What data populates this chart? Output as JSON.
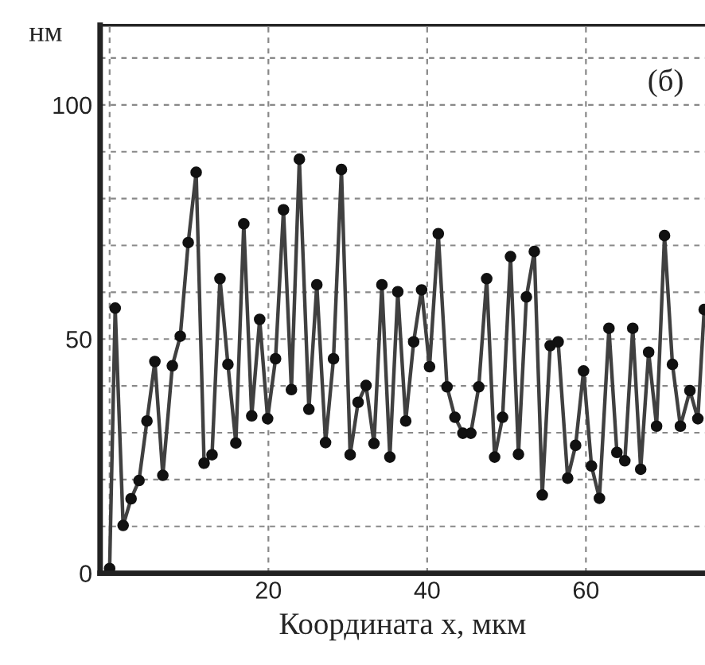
{
  "chart_data": {
    "type": "line",
    "xlabel": "Координата x, мкм",
    "ylabel": "нм",
    "annotations": [
      "(б)"
    ],
    "x": [
      0,
      0.7,
      1.7,
      2.7,
      3.7,
      4.7,
      5.7,
      6.7,
      7.9,
      8.9,
      9.9,
      10.9,
      11.9,
      12.9,
      13.9,
      14.9,
      15.9,
      16.9,
      17.9,
      18.9,
      19.9,
      20.9,
      21.9,
      22.9,
      23.9,
      25.1,
      26.1,
      27.2,
      28.2,
      29.2,
      30.3,
      31.3,
      32.3,
      33.3,
      34.3,
      35.3,
      36.3,
      37.3,
      38.3,
      39.3,
      40.3,
      41.4,
      42.5,
      43.5,
      44.5,
      45.5,
      46.5,
      47.5,
      48.5,
      49.5,
      50.5,
      51.5,
      52.5,
      53.5,
      54.5,
      55.5,
      56.5,
      57.7,
      58.7,
      59.7,
      60.7,
      61.7,
      62.9,
      63.9,
      64.9,
      65.9,
      66.9,
      67.9,
      68.9,
      69.9,
      70.9,
      71.9,
      73.1,
      74.1,
      74.9
    ],
    "series": [
      {
        "color": "#404040",
        "values": [
          1,
          56.6,
          10.2,
          15.9,
          19.8,
          32.5,
          45.2,
          20.9,
          44.3,
          50.6,
          70.6,
          85.6,
          23.5,
          25.3,
          62.9,
          44.6,
          27.8,
          74.6,
          33.6,
          54.2,
          33,
          45.8,
          77.6,
          39.2,
          88.4,
          35,
          61.6,
          27.9,
          45.8,
          86.2,
          25.3,
          36.5,
          40.1,
          27.7,
          61.6,
          24.8,
          60.1,
          32.5,
          49.4,
          60.5,
          44.1,
          72.5,
          39.8,
          33.3,
          29.9,
          29.9,
          39.8,
          62.9,
          24.8,
          33.3,
          67.6,
          25.4,
          59,
          68.7,
          16.7,
          48.6,
          49.4,
          20.3,
          27.3,
          43.2,
          22.9,
          16,
          52.3,
          25.8,
          24,
          52.3,
          22.2,
          47.2,
          31.4,
          72.1,
          44.6,
          31.4,
          39,
          33,
          56.3
        ]
      }
    ],
    "xlim": [
      -1.2,
      75
    ],
    "xticks": [
      {
        "value": 0,
        "label": null
      },
      20,
      40,
      60
    ],
    "ylim": [
      0,
      117
    ],
    "yticks": [
      0,
      {
        "value": 10,
        "label": null
      },
      {
        "value": 20,
        "label": null
      },
      {
        "value": 30,
        "label": null
      },
      {
        "value": 40,
        "label": null
      },
      50,
      {
        "value": 60,
        "label": null
      },
      {
        "value": 70,
        "label": null
      },
      {
        "value": 80,
        "label": null
      },
      {
        "value": 90,
        "label": null
      },
      100,
      {
        "value": 110,
        "label": null
      }
    ],
    "grid": true,
    "marker": "circle",
    "line_style": "solid",
    "legend": false
  }
}
